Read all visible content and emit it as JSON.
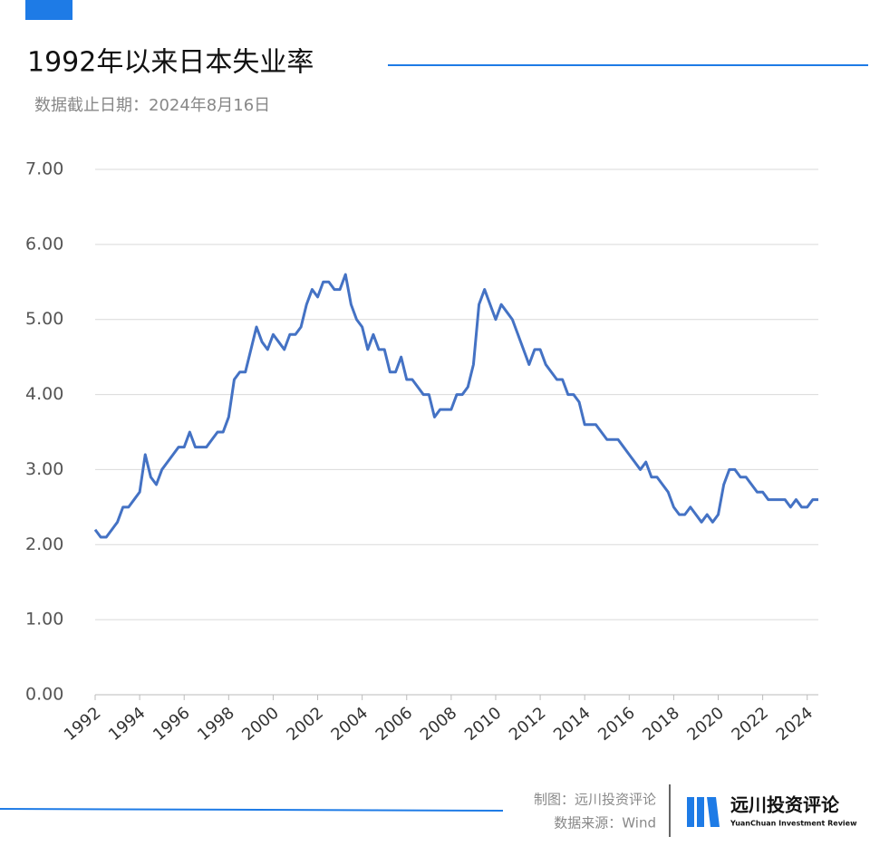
{
  "chart_data": {
    "type": "line",
    "title": "1992年以来日本失业率",
    "subtitle": "数据截止日期：2024年8月16日",
    "credit": "制图：远川投资评论",
    "source": "数据来源：Wind",
    "brand": "远川投资评论",
    "brand_en": "YuanChuan Investment Review",
    "xlim": [
      1992,
      2024.5
    ],
    "xticks": [
      1992,
      1994,
      1996,
      1998,
      2000,
      2002,
      2004,
      2006,
      2008,
      2010,
      2012,
      2014,
      2016,
      2018,
      2020,
      2022,
      2024
    ],
    "ylim": [
      0,
      7
    ],
    "yticks": [
      {
        "value": 0,
        "label": "0.00"
      },
      {
        "value": 1,
        "label": "1.00"
      },
      {
        "value": 2,
        "label": "2.00"
      },
      {
        "value": 3,
        "label": "3.00"
      },
      {
        "value": 4,
        "label": "4.00"
      },
      {
        "value": 5,
        "label": "5.00"
      },
      {
        "value": 6,
        "label": "6.00"
      },
      {
        "value": 7,
        "label": "7.00"
      }
    ],
    "grid": true,
    "x": [
      1992,
      1992.25,
      1992.5,
      1992.75,
      1993,
      1993.25,
      1993.5,
      1993.75,
      1994,
      1994.25,
      1994.5,
      1994.75,
      1995,
      1995.25,
      1995.5,
      1995.75,
      1996,
      1996.25,
      1996.5,
      1996.75,
      1997,
      1997.25,
      1997.5,
      1997.75,
      1998,
      1998.25,
      1998.5,
      1998.75,
      1999,
      1999.25,
      1999.5,
      1999.75,
      2000,
      2000.25,
      2000.5,
      2000.75,
      2001,
      2001.25,
      2001.5,
      2001.75,
      2002,
      2002.25,
      2002.5,
      2002.75,
      2003,
      2003.25,
      2003.5,
      2003.75,
      2004,
      2004.25,
      2004.5,
      2004.75,
      2005,
      2005.25,
      2005.5,
      2005.75,
      2006,
      2006.25,
      2006.5,
      2006.75,
      2007,
      2007.25,
      2007.5,
      2007.75,
      2008,
      2008.25,
      2008.5,
      2008.75,
      2009,
      2009.25,
      2009.5,
      2009.75,
      2010,
      2010.25,
      2010.5,
      2010.75,
      2011,
      2011.25,
      2011.5,
      2011.75,
      2012,
      2012.25,
      2012.5,
      2012.75,
      2013,
      2013.25,
      2013.5,
      2013.75,
      2014,
      2014.25,
      2014.5,
      2014.75,
      2015,
      2015.25,
      2015.5,
      2015.75,
      2016,
      2016.25,
      2016.5,
      2016.75,
      2017,
      2017.25,
      2017.5,
      2017.75,
      2018,
      2018.25,
      2018.5,
      2018.75,
      2019,
      2019.25,
      2019.5,
      2019.75,
      2020,
      2020.25,
      2020.5,
      2020.75,
      2021,
      2021.25,
      2021.5,
      2021.75,
      2022,
      2022.25,
      2022.5,
      2022.75,
      2023,
      2023.25,
      2023.5,
      2023.75,
      2024,
      2024.25,
      2024.5
    ],
    "series": [
      {
        "color": "#4472c4",
        "values": [
          2.2,
          2.1,
          2.1,
          2.2,
          2.3,
          2.5,
          2.5,
          2.6,
          2.7,
          3.2,
          2.9,
          2.8,
          3.0,
          3.1,
          3.2,
          3.3,
          3.3,
          3.5,
          3.3,
          3.3,
          3.3,
          3.4,
          3.5,
          3.5,
          3.7,
          4.2,
          4.3,
          4.3,
          4.6,
          4.9,
          4.7,
          4.6,
          4.8,
          4.7,
          4.6,
          4.8,
          4.8,
          4.9,
          5.2,
          5.4,
          5.3,
          5.5,
          5.5,
          5.4,
          5.4,
          5.6,
          5.2,
          5.0,
          4.9,
          4.6,
          4.8,
          4.6,
          4.6,
          4.3,
          4.3,
          4.5,
          4.2,
          4.2,
          4.1,
          4.0,
          4.0,
          3.7,
          3.8,
          3.8,
          3.8,
          4.0,
          4.0,
          4.1,
          4.4,
          5.2,
          5.4,
          5.2,
          5.0,
          5.2,
          5.1,
          5.0,
          4.8,
          4.6,
          4.4,
          4.6,
          4.6,
          4.4,
          4.3,
          4.2,
          4.2,
          4.0,
          4.0,
          3.9,
          3.6,
          3.6,
          3.6,
          3.5,
          3.4,
          3.4,
          3.4,
          3.3,
          3.2,
          3.1,
          3.0,
          3.1,
          2.9,
          2.9,
          2.8,
          2.7,
          2.5,
          2.4,
          2.4,
          2.5,
          2.4,
          2.3,
          2.4,
          2.3,
          2.4,
          2.8,
          3.0,
          3.0,
          2.9,
          2.9,
          2.8,
          2.7,
          2.7,
          2.6,
          2.6,
          2.6,
          2.6,
          2.5,
          2.6,
          2.5,
          2.5,
          2.6,
          2.6
        ]
      }
    ]
  }
}
